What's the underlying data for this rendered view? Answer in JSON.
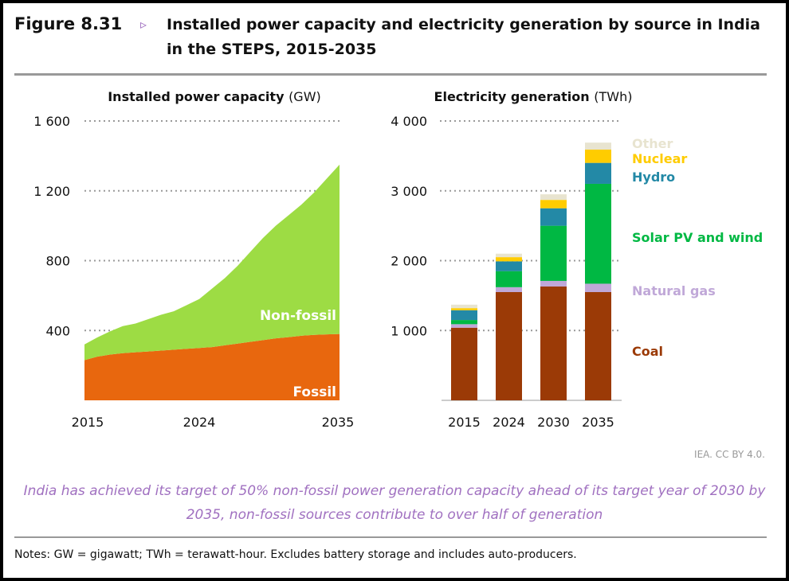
{
  "figure": {
    "number": "Figure 8.31",
    "marker": "▹",
    "title": "Installed power capacity and electricity generation by source in India in the STEPS, 2015-2035"
  },
  "caption": "India has achieved its target of 50% non-fossil power generation capacity ahead of its target year of 2030 by 2035, non-fossil sources contribute to over half of generation",
  "credit": "IEA. CC BY 4.0.",
  "notes": "Notes: GW = gigawatt; TWh = terawatt-hour. Excludes battery storage and includes auto-producers.",
  "colors": {
    "fossil": "#e8670e",
    "nonfossil": "#9ddc44",
    "coal": "#9b3a06",
    "gas": "#c0a8d8",
    "solar": "#00b843",
    "hydro": "#2389a6",
    "nuclear": "#ffcc00",
    "other": "#e8e4d0"
  },
  "chart_data": [
    {
      "type": "area",
      "title": "Installed power capacity",
      "unit": "(GW)",
      "ylim": [
        0,
        1600
      ],
      "yticks": [
        400,
        800,
        1200,
        1600
      ],
      "ytick_labels": [
        "400",
        "800",
        "1 200",
        "1 600"
      ],
      "xtick_labels": [
        "2015",
        "2024",
        "2035"
      ],
      "xticks": [
        2015,
        2024,
        2035
      ],
      "x": [
        2015,
        2016,
        2017,
        2018,
        2019,
        2020,
        2021,
        2022,
        2023,
        2024,
        2025,
        2026,
        2027,
        2028,
        2029,
        2030,
        2031,
        2032,
        2033,
        2034,
        2035
      ],
      "series": [
        {
          "name": "Fossil",
          "key": "fossil",
          "values": [
            230,
            250,
            262,
            270,
            275,
            280,
            285,
            290,
            295,
            300,
            305,
            315,
            325,
            335,
            345,
            355,
            362,
            370,
            375,
            378,
            380
          ]
        },
        {
          "name": "Non-fossil",
          "key": "nonfossil",
          "values": [
            90,
            110,
            133,
            155,
            165,
            185,
            205,
            220,
            250,
            280,
            335,
            385,
            445,
            515,
            585,
            645,
            698,
            750,
            815,
            892,
            970
          ]
        }
      ]
    },
    {
      "type": "bar",
      "stacked": true,
      "title": "Electricity generation",
      "unit": "(TWh)",
      "ylim": [
        0,
        4000
      ],
      "yticks": [
        1000,
        2000,
        3000,
        4000
      ],
      "ytick_labels": [
        "1 000",
        "2 000",
        "3 000",
        "4 000"
      ],
      "categories": [
        "2015",
        "2024",
        "2030",
        "2035"
      ],
      "series": [
        {
          "name": "Coal",
          "key": "coal",
          "values": [
            1040,
            1550,
            1630,
            1550
          ]
        },
        {
          "name": "Natural gas",
          "key": "gas",
          "values": [
            50,
            70,
            80,
            120
          ]
        },
        {
          "name": "Solar PV and wind",
          "key": "solar",
          "values": [
            60,
            230,
            790,
            1430
          ]
        },
        {
          "name": "Hydro",
          "key": "hydro",
          "values": [
            140,
            140,
            250,
            300
          ]
        },
        {
          "name": "Nuclear",
          "key": "nuclear",
          "values": [
            30,
            60,
            120,
            190
          ]
        },
        {
          "name": "Other",
          "key": "other",
          "values": [
            50,
            50,
            80,
            100
          ]
        }
      ]
    }
  ]
}
